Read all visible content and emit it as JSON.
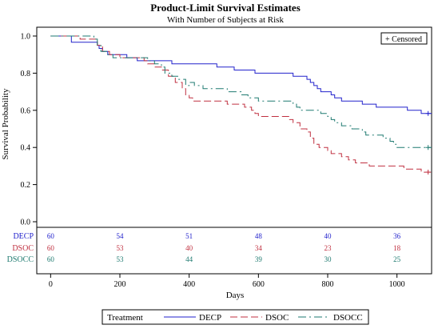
{
  "chart_data": {
    "type": "line",
    "step": true,
    "title": "Product-Limit Survival Estimates",
    "subtitle": "With Number of Subjects at Risk",
    "xlabel": "Days",
    "ylabel": "Survival Probability",
    "xlim": [
      -40,
      1100
    ],
    "ylim": [
      0,
      1
    ],
    "xticks": [
      0,
      200,
      400,
      600,
      800,
      1000
    ],
    "yticks": [
      "0.0",
      "0.2",
      "0.4",
      "0.6",
      "0.8",
      "1.0"
    ],
    "censor_legend": "+ Censored",
    "legend_title": "Treatment",
    "legend_position": "bottom",
    "series": [
      {
        "name": "DECP",
        "color": "#2222cc",
        "dash": "",
        "points": [
          [
            0,
            1.0
          ],
          [
            55,
            1.0
          ],
          [
            60,
            0.967
          ],
          [
            130,
            0.967
          ],
          [
            135,
            0.95
          ],
          [
            140,
            0.933
          ],
          [
            150,
            0.917
          ],
          [
            165,
            0.9
          ],
          [
            215,
            0.9
          ],
          [
            220,
            0.883
          ],
          [
            240,
            0.883
          ],
          [
            250,
            0.867
          ],
          [
            340,
            0.867
          ],
          [
            350,
            0.85
          ],
          [
            470,
            0.85
          ],
          [
            480,
            0.833
          ],
          [
            520,
            0.833
          ],
          [
            530,
            0.817
          ],
          [
            580,
            0.817
          ],
          [
            590,
            0.8
          ],
          [
            690,
            0.8
          ],
          [
            700,
            0.783
          ],
          [
            730,
            0.783
          ],
          [
            740,
            0.767
          ],
          [
            750,
            0.75
          ],
          [
            760,
            0.733
          ],
          [
            770,
            0.717
          ],
          [
            780,
            0.7
          ],
          [
            800,
            0.7
          ],
          [
            810,
            0.683
          ],
          [
            820,
            0.667
          ],
          [
            840,
            0.65
          ],
          [
            890,
            0.65
          ],
          [
            900,
            0.633
          ],
          [
            930,
            0.633
          ],
          [
            940,
            0.617
          ],
          [
            1020,
            0.617
          ],
          [
            1030,
            0.6
          ],
          [
            1060,
            0.6
          ],
          [
            1070,
            0.583
          ],
          [
            1100,
            0.583
          ]
        ],
        "censored": [
          [
            1090,
            0.583
          ]
        ],
        "at_risk": [
          60,
          54,
          51,
          48,
          40,
          36
        ]
      },
      {
        "name": "DSOC",
        "color": "#c03040",
        "dash": "9,4",
        "points": [
          [
            0,
            1.0
          ],
          [
            80,
            1.0
          ],
          [
            85,
            0.983
          ],
          [
            130,
            0.983
          ],
          [
            135,
            0.95
          ],
          [
            150,
            0.917
          ],
          [
            170,
            0.9
          ],
          [
            200,
            0.883
          ],
          [
            260,
            0.883
          ],
          [
            270,
            0.867
          ],
          [
            280,
            0.85
          ],
          [
            300,
            0.833
          ],
          [
            320,
            0.817
          ],
          [
            340,
            0.783
          ],
          [
            360,
            0.75
          ],
          [
            380,
            0.717
          ],
          [
            390,
            0.683
          ],
          [
            400,
            0.667
          ],
          [
            410,
            0.65
          ],
          [
            500,
            0.65
          ],
          [
            510,
            0.633
          ],
          [
            550,
            0.633
          ],
          [
            560,
            0.617
          ],
          [
            580,
            0.6
          ],
          [
            590,
            0.583
          ],
          [
            600,
            0.567
          ],
          [
            680,
            0.567
          ],
          [
            690,
            0.55
          ],
          [
            700,
            0.533
          ],
          [
            720,
            0.5
          ],
          [
            740,
            0.483
          ],
          [
            750,
            0.45
          ],
          [
            760,
            0.417
          ],
          [
            775,
            0.4
          ],
          [
            800,
            0.383
          ],
          [
            810,
            0.367
          ],
          [
            840,
            0.35
          ],
          [
            860,
            0.333
          ],
          [
            880,
            0.317
          ],
          [
            920,
            0.3
          ],
          [
            1010,
            0.3
          ],
          [
            1020,
            0.283
          ],
          [
            1060,
            0.283
          ],
          [
            1070,
            0.267
          ],
          [
            1100,
            0.267
          ]
        ],
        "censored": [
          [
            1090,
            0.267
          ]
        ],
        "at_risk": [
          60,
          53,
          40,
          34,
          23,
          18
        ]
      },
      {
        "name": "DSOCC",
        "color": "#1e7a70",
        "dash": "10,4,2,4",
        "points": [
          [
            0,
            1.0
          ],
          [
            120,
            1.0
          ],
          [
            125,
            0.983
          ],
          [
            135,
            0.95
          ],
          [
            145,
            0.917
          ],
          [
            165,
            0.9
          ],
          [
            180,
            0.883
          ],
          [
            270,
            0.883
          ],
          [
            280,
            0.867
          ],
          [
            300,
            0.85
          ],
          [
            320,
            0.833
          ],
          [
            330,
            0.8
          ],
          [
            350,
            0.783
          ],
          [
            370,
            0.767
          ],
          [
            390,
            0.733
          ],
          [
            400,
            0.75
          ],
          [
            415,
            0.733
          ],
          [
            440,
            0.717
          ],
          [
            500,
            0.717
          ],
          [
            510,
            0.7
          ],
          [
            550,
            0.683
          ],
          [
            570,
            0.667
          ],
          [
            600,
            0.65
          ],
          [
            680,
            0.65
          ],
          [
            700,
            0.633
          ],
          [
            710,
            0.617
          ],
          [
            720,
            0.6
          ],
          [
            770,
            0.6
          ],
          [
            780,
            0.583
          ],
          [
            800,
            0.567
          ],
          [
            810,
            0.55
          ],
          [
            820,
            0.533
          ],
          [
            840,
            0.517
          ],
          [
            870,
            0.5
          ],
          [
            900,
            0.483
          ],
          [
            910,
            0.467
          ],
          [
            950,
            0.467
          ],
          [
            960,
            0.45
          ],
          [
            980,
            0.433
          ],
          [
            990,
            0.417
          ],
          [
            1000,
            0.4
          ],
          [
            1100,
            0.4
          ]
        ],
        "censored": [
          [
            1090,
            0.4
          ]
        ],
        "at_risk": [
          60,
          53,
          44,
          39,
          30,
          25
        ]
      }
    ],
    "at_risk_times": [
      0,
      200,
      400,
      600,
      800,
      1000
    ]
  }
}
